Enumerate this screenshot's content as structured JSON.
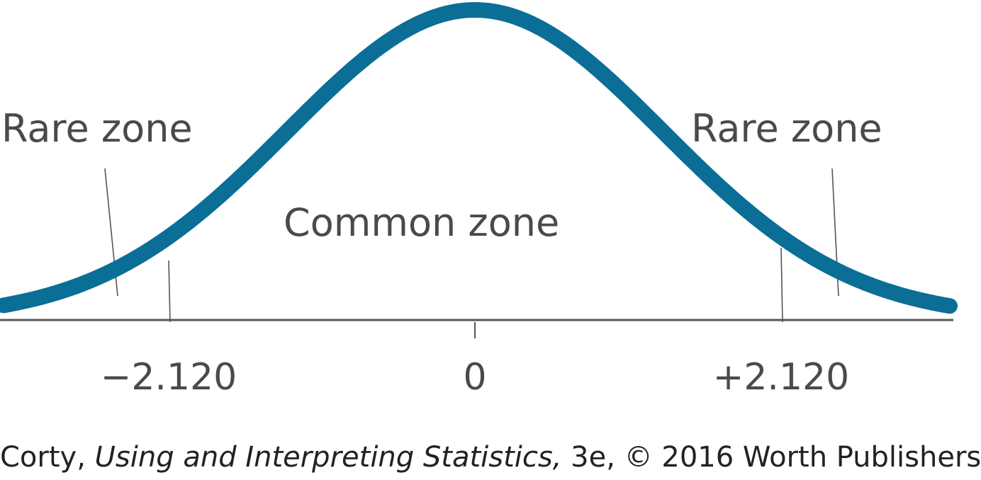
{
  "labels": {
    "rare_left": "Rare zone",
    "rare_right": "Rare zone",
    "common": "Common zone"
  },
  "ticks": {
    "left": "−2.120",
    "center": "0",
    "right": "+2.120"
  },
  "caption": {
    "author": "Corty, ",
    "title": "Using and Interpreting Statistics,",
    "rest": " 3e, © 2016 Worth Publishers"
  },
  "colors": {
    "curve": "#0a6e96",
    "text": "#4a4a4a",
    "axis": "#555555",
    "caption": "#222222"
  }
}
